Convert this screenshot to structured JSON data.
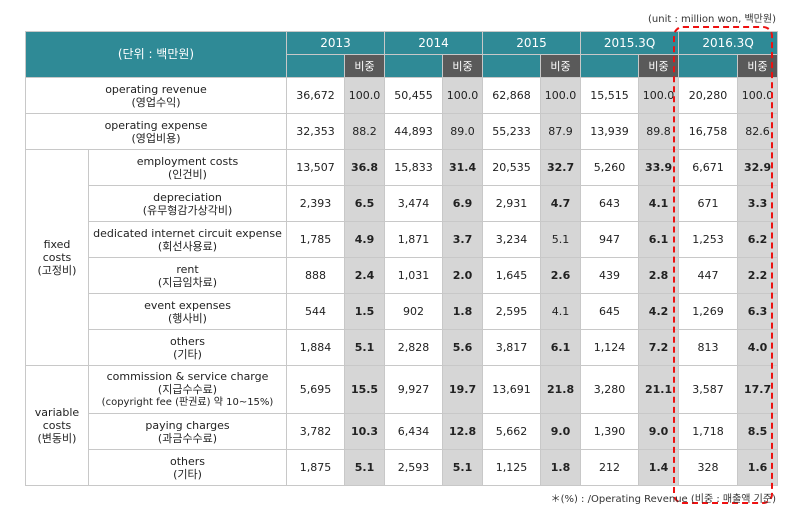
{
  "unit_note": "(unit : million won, 백만원)",
  "header": {
    "corner": "(단위 : 백만원)",
    "ratio_label": "비중",
    "periods": [
      "2013",
      "2014",
      "2015",
      "2015.3Q",
      "2016.3Q"
    ]
  },
  "rows": [
    {
      "en": "operating revenue",
      "ko": "(영업수익)",
      "values": [
        "36,672",
        "100.0",
        "50,455",
        "100.0",
        "62,868",
        "100.0",
        "15,515",
        "100.0",
        "20,280",
        "100.0"
      ]
    },
    {
      "en": "operating expense",
      "ko": "(영업비용)",
      "values": [
        "32,353",
        "88.2",
        "44,893",
        "89.0",
        "55,233",
        "87.9",
        "13,939",
        "89.8",
        "16,758",
        "82.6"
      ]
    }
  ],
  "fixed": {
    "label": [
      "fixed",
      "costs",
      "(고정비)"
    ],
    "rows": [
      {
        "en": "employment costs",
        "ko": "(인건비)",
        "values": [
          "13,507",
          "36.8",
          "15,833",
          "31.4",
          "20,535",
          "32.7",
          "5,260",
          "33.9",
          "6,671",
          "32.9"
        ]
      },
      {
        "en": "depreciation",
        "ko": "(유무형감가상각비)",
        "values": [
          "2,393",
          "6.5",
          "3,474",
          "6.9",
          "2,931",
          "4.7",
          "643",
          "4.1",
          "671",
          "3.3"
        ]
      },
      {
        "en": "dedicated internet circuit expense",
        "ko": "(회선사용료)",
        "values": [
          "1,785",
          "4.9",
          "1,871",
          "3.7",
          "3,234",
          "5.1",
          "947",
          "6.1",
          "1,253",
          "6.2"
        ]
      },
      {
        "en": "rent",
        "ko": "(지급임차료)",
        "values": [
          "888",
          "2.4",
          "1,031",
          "2.0",
          "1,645",
          "2.6",
          "439",
          "2.8",
          "447",
          "2.2"
        ]
      },
      {
        "en": "event expenses",
        "ko": "(행사비)",
        "values": [
          "544",
          "1.5",
          "902",
          "1.8",
          "2,595",
          "4.1",
          "645",
          "4.2",
          "1,269",
          "6.3"
        ]
      },
      {
        "en": "others",
        "ko": "(기타)",
        "values": [
          "1,884",
          "5.1",
          "2,828",
          "5.6",
          "3,817",
          "6.1",
          "1,124",
          "7.2",
          "813",
          "4.0"
        ]
      }
    ]
  },
  "variable": {
    "label": [
      "variable",
      "costs",
      "(변동비)"
    ],
    "rows": [
      {
        "en": "commission & service charge",
        "ko": "(지급수수료)",
        "extra": "(copyright fee (판권료) 약 10~15%)",
        "values": [
          "5,695",
          "15.5",
          "9,927",
          "19.7",
          "13,691",
          "21.8",
          "3,280",
          "21.1",
          "3,587",
          "17.7"
        ]
      },
      {
        "en": "paying charges",
        "ko": "(과금수수료)",
        "values": [
          "3,782",
          "10.3",
          "6,434",
          "12.8",
          "5,662",
          "9.0",
          "1,390",
          "9.0",
          "1,718",
          "8.5"
        ]
      },
      {
        "en": "others",
        "ko": "(기타)",
        "values": [
          "1,875",
          "5.1",
          "2,593",
          "5.1",
          "1,125",
          "1.8",
          "212",
          "1.4",
          "328",
          "1.6"
        ]
      }
    ]
  },
  "footnote": "＊(%) : /Operating Revenue (비중 : 매출액 기준)"
}
